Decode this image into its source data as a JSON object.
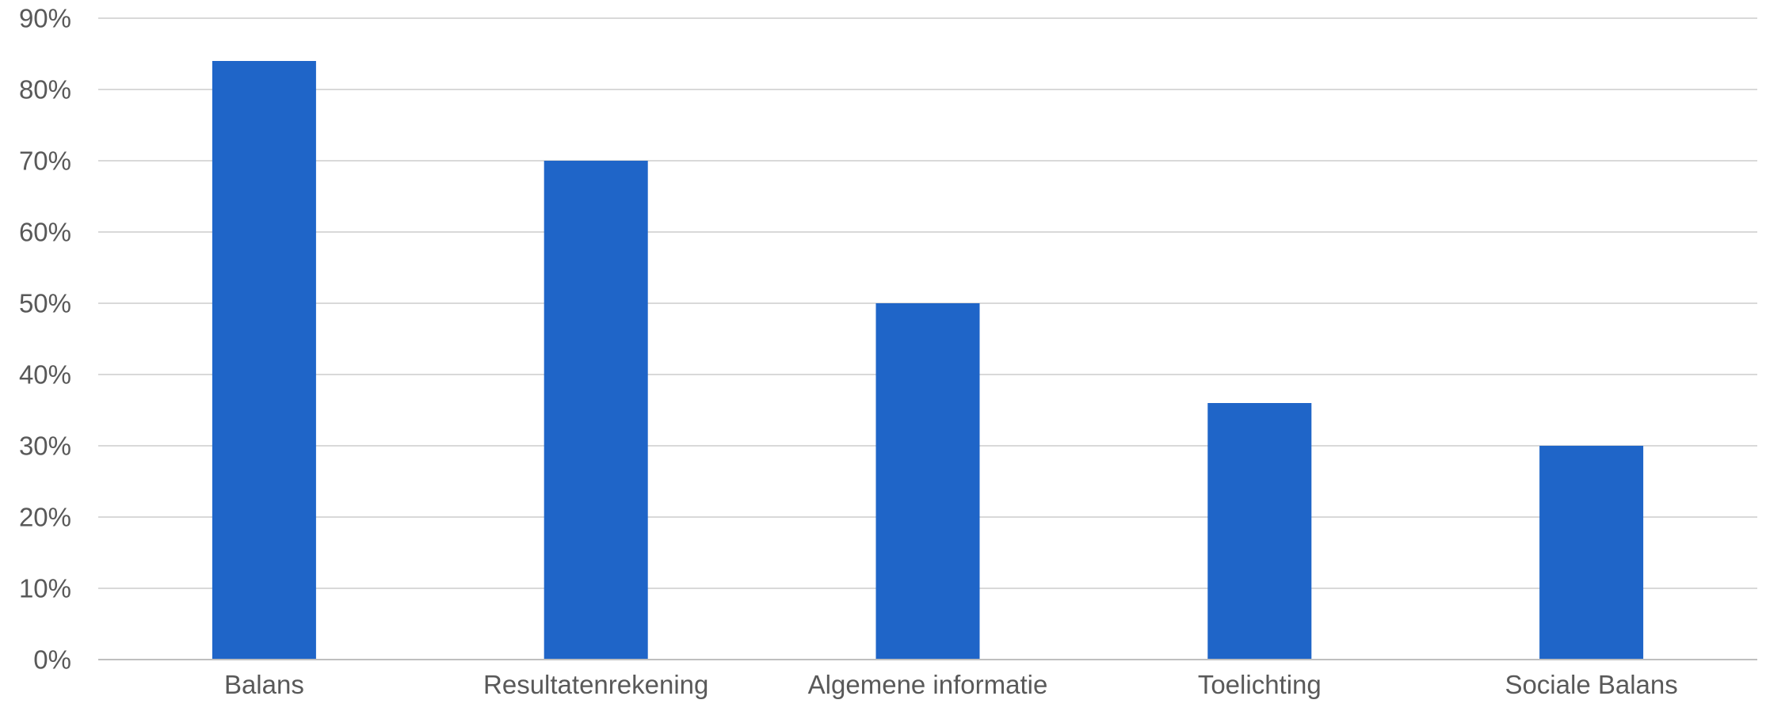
{
  "chart_data": {
    "type": "bar",
    "title": "",
    "xlabel": "",
    "ylabel": "",
    "categories": [
      "Balans",
      "Resultatenrekening",
      "Algemene informatie",
      "Toelichting",
      "Sociale Balans"
    ],
    "values": [
      84,
      70,
      50,
      36,
      30
    ],
    "value_unit": "%",
    "ylim": [
      0,
      90
    ],
    "yticks": [
      0,
      10,
      20,
      30,
      40,
      50,
      60,
      70,
      80,
      90
    ],
    "ytick_labels": [
      "0%",
      "10%",
      "20%",
      "30%",
      "40%",
      "50%",
      "60%",
      "70%",
      "80%",
      "90%"
    ],
    "grid": true,
    "legend": "none",
    "colors": {
      "bar": "#1F65C8",
      "grid": "#D9D9D9",
      "axis": "#BFBFBF",
      "text": "#595959"
    }
  }
}
